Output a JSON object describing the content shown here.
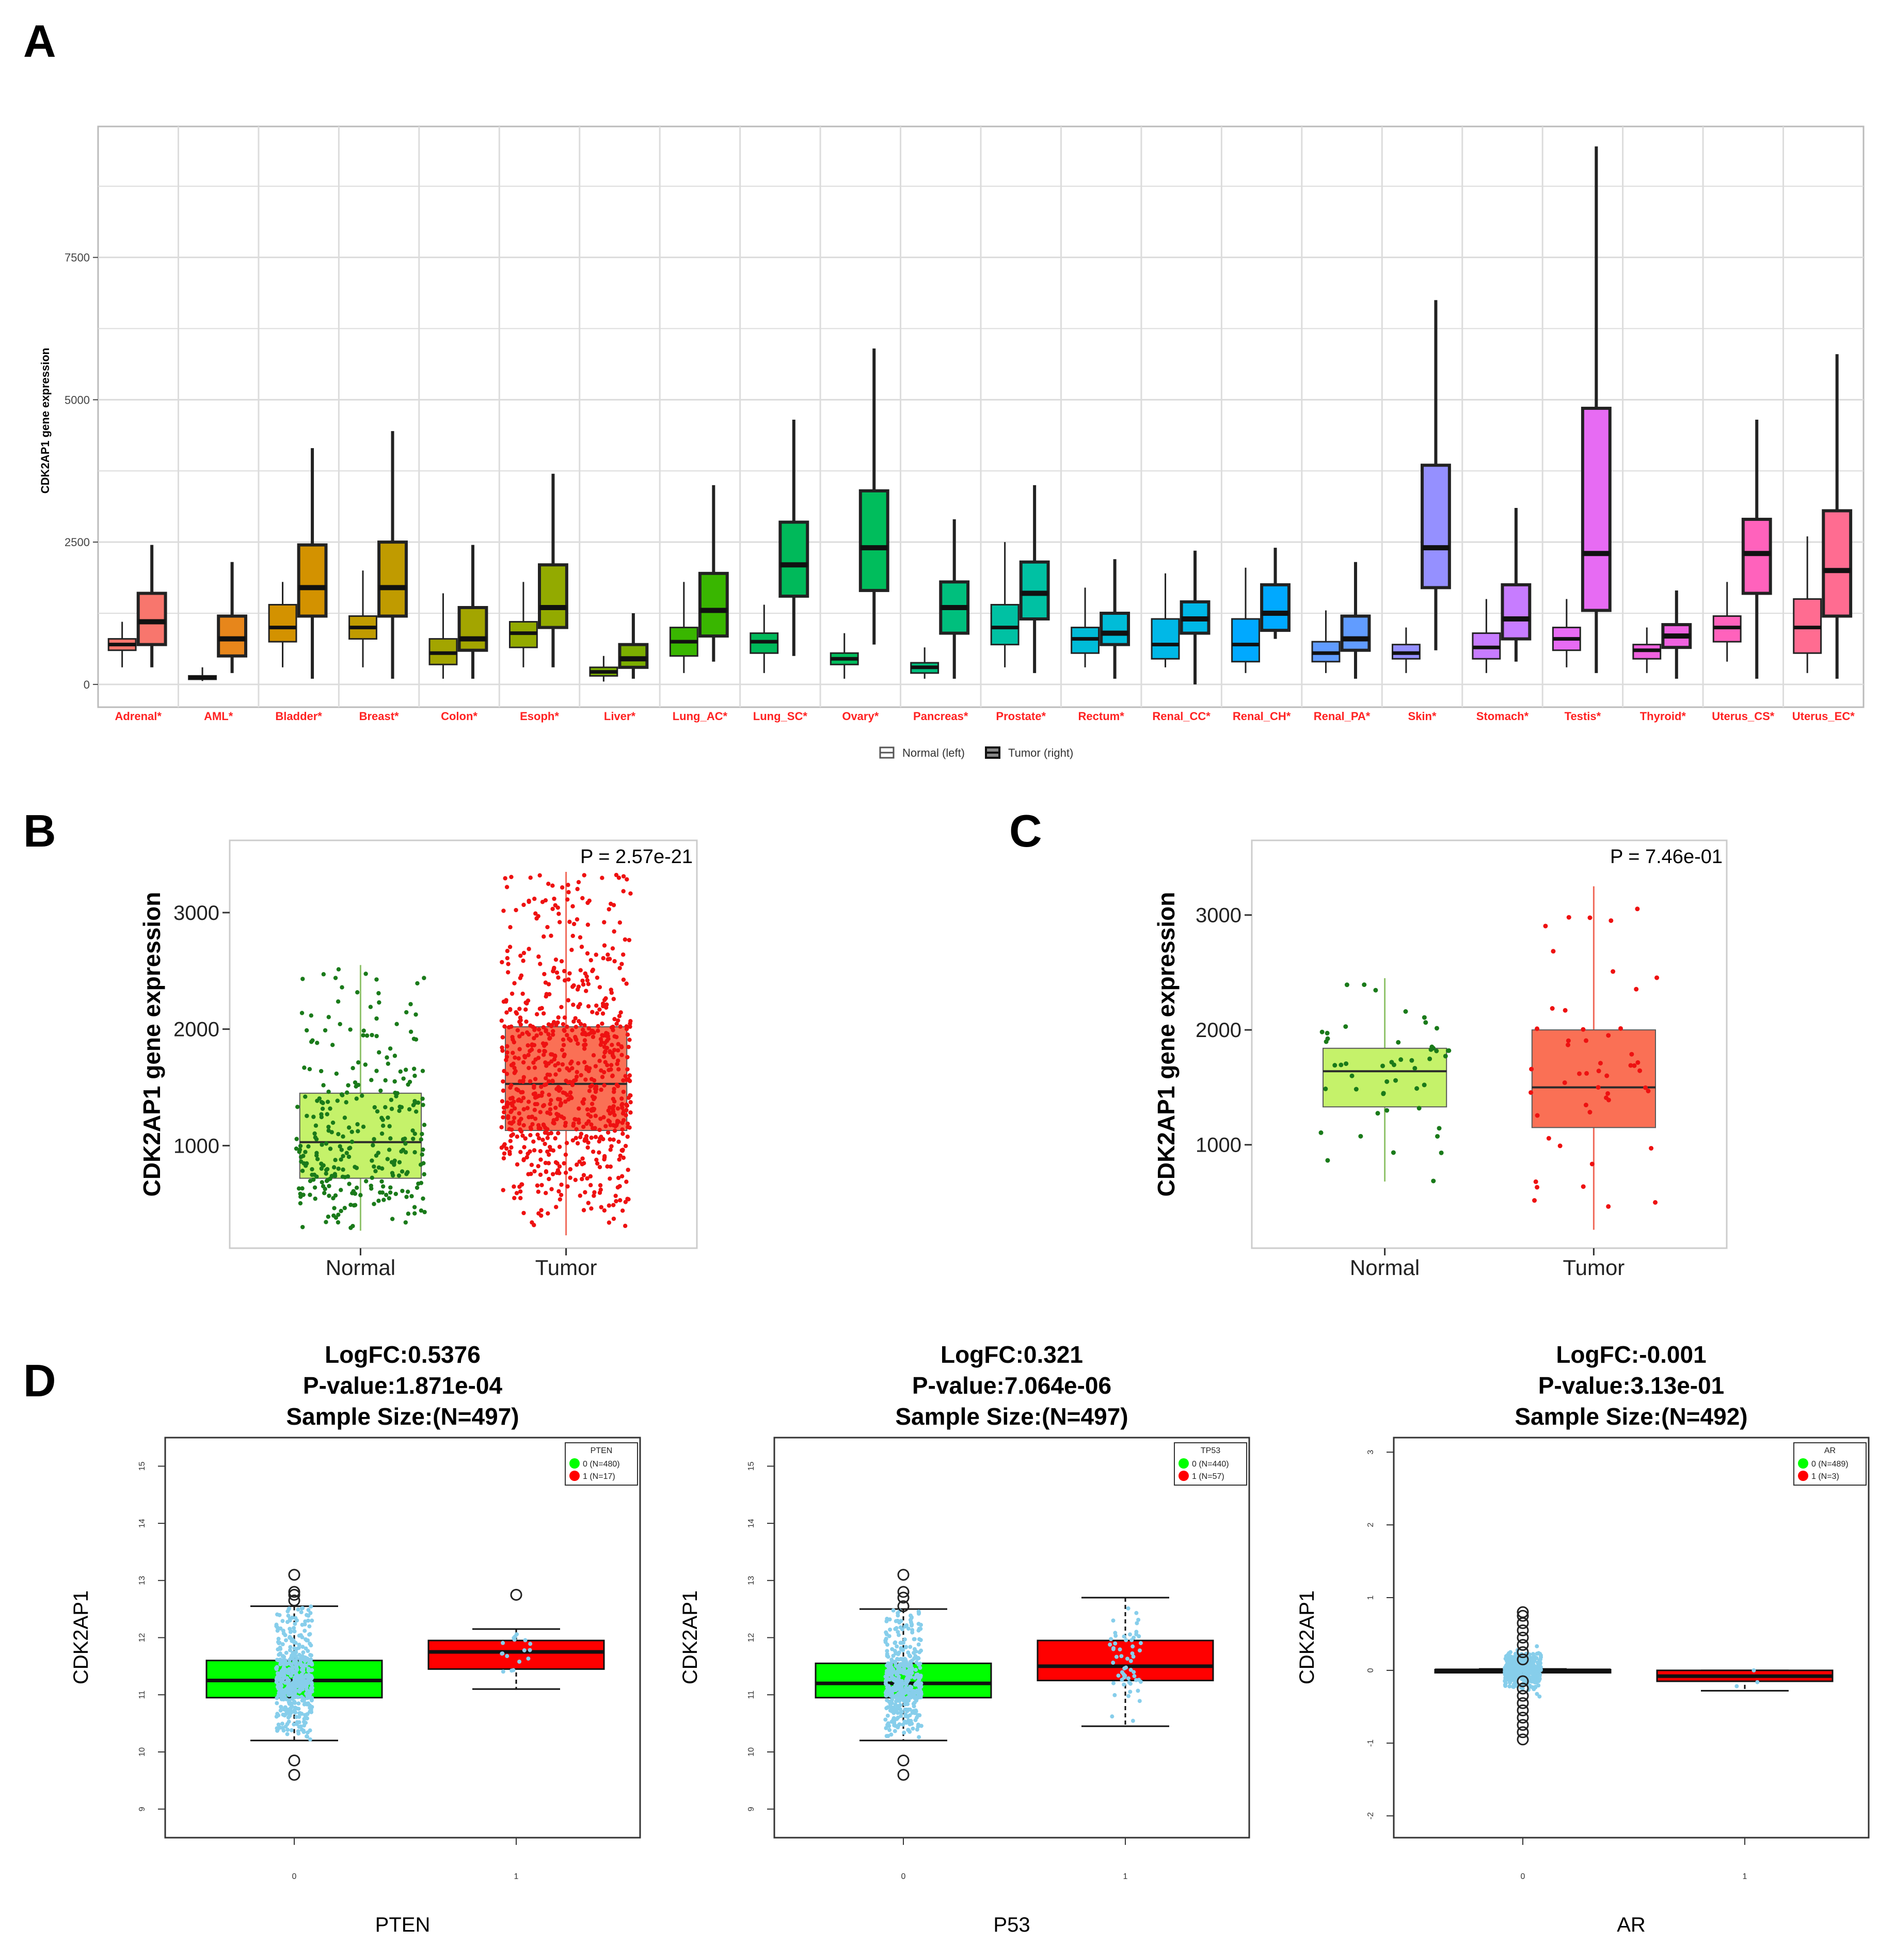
{
  "panel_labels": {
    "a": "A",
    "b": "B",
    "c": "C",
    "d": "D"
  },
  "colors": {
    "normal_green_fill": "#c5f26a",
    "normal_green_dot": "#1a7a1a",
    "tumor_red_fill": "#fa7055",
    "tumor_red_dot": "#ee1111",
    "d_green": "#00ff00",
    "d_red": "#ff0000",
    "d_dot": "#87ceeb",
    "tissue_label": "#ff2222",
    "grid": "#dcdcdc"
  },
  "chart_data": [
    {
      "id": "A",
      "type": "box",
      "ylabel": "CDK2AP1 gene expression",
      "ylim": [
        -400,
        9800
      ],
      "yticks": [
        0,
        2500,
        5000,
        7500
      ],
      "legend": {
        "normal": "Normal (left)",
        "tumor": "Tumor (right)"
      },
      "categories": [
        "Adrenal*",
        "AML*",
        "Bladder*",
        "Breast*",
        "Colon*",
        "Esoph*",
        "Liver*",
        "Lung_AC*",
        "Lung_SC*",
        "Ovary*",
        "Pancreas*",
        "Prostate*",
        "Rectum*",
        "Renal_CC*",
        "Renal_CH*",
        "Renal_PA*",
        "Skin*",
        "Stomach*",
        "Testis*",
        "Thyroid*",
        "Uterus_CS*",
        "Uterus_EC*"
      ],
      "colors": [
        "#f8766d",
        "#e7861b",
        "#d39200",
        "#c09b00",
        "#a3a500",
        "#93aa00",
        "#7cae00",
        "#39b600",
        "#00b95a",
        "#00bd5c",
        "#00bf7d",
        "#00c1a3",
        "#00bcd8",
        "#00b8e7",
        "#00a9ff",
        "#619cff",
        "#9590ff",
        "#c77cff",
        "#e76bf3",
        "#f062e0",
        "#ff62bc",
        "#ff6c91"
      ],
      "normal": [
        [
          300,
          600,
          700,
          800,
          1100
        ],
        [
          60,
          90,
          120,
          150,
          300
        ],
        [
          300,
          750,
          1000,
          1400,
          1800
        ],
        [
          300,
          800,
          1000,
          1200,
          2000
        ],
        [
          100,
          350,
          550,
          800,
          1600
        ],
        [
          300,
          650,
          900,
          1100,
          1800
        ],
        [
          50,
          150,
          220,
          300,
          500
        ],
        [
          200,
          500,
          750,
          1000,
          1800
        ],
        [
          200,
          550,
          750,
          900,
          1400
        ],
        [
          100,
          350,
          450,
          550,
          900
        ],
        [
          100,
          200,
          300,
          380,
          650
        ],
        [
          300,
          700,
          1000,
          1400,
          2500
        ],
        [
          300,
          550,
          800,
          1000,
          1700
        ],
        [
          300,
          450,
          700,
          1150,
          1950
        ],
        [
          200,
          400,
          700,
          1150,
          2050
        ],
        [
          200,
          400,
          550,
          750,
          1300
        ],
        [
          200,
          450,
          550,
          700,
          1000
        ],
        [
          200,
          450,
          650,
          900,
          1500
        ],
        [
          300,
          600,
          800,
          1000,
          1500
        ],
        [
          200,
          450,
          600,
          700,
          1000
        ],
        [
          400,
          750,
          1000,
          1200,
          1800
        ],
        [
          200,
          550,
          1000,
          1500,
          2600
        ]
      ],
      "tumor": [
        [
          300,
          700,
          1100,
          1600,
          2450
        ],
        [
          200,
          500,
          800,
          1200,
          2150
        ],
        [
          100,
          1200,
          1700,
          2450,
          4150
        ],
        [
          100,
          1200,
          1700,
          2500,
          4450
        ],
        [
          100,
          600,
          800,
          1350,
          2450
        ],
        [
          300,
          1000,
          1350,
          2100,
          3700
        ],
        [
          100,
          300,
          450,
          700,
          1250
        ],
        [
          400,
          850,
          1300,
          1950,
          3500
        ],
        [
          500,
          1550,
          2100,
          2850,
          4650
        ],
        [
          700,
          1650,
          2400,
          3400,
          5900
        ],
        [
          100,
          900,
          1350,
          1800,
          2900
        ],
        [
          200,
          1150,
          1600,
          2150,
          3500
        ],
        [
          100,
          700,
          900,
          1250,
          2200
        ],
        [
          0,
          900,
          1150,
          1450,
          2350
        ],
        [
          800,
          950,
          1250,
          1750,
          2400
        ],
        [
          100,
          600,
          800,
          1200,
          2150
        ],
        [
          600,
          1700,
          2400,
          3850,
          6750
        ],
        [
          400,
          800,
          1150,
          1750,
          3100
        ],
        [
          200,
          1300,
          2300,
          4850,
          9450
        ],
        [
          100,
          650,
          850,
          1050,
          1650
        ],
        [
          100,
          1600,
          2300,
          2900,
          4650
        ],
        [
          100,
          1200,
          2000,
          3050,
          5800
        ]
      ]
    },
    {
      "id": "B",
      "type": "box",
      "ylabel": "CDK2AP1 gene expression",
      "ylim": [
        120,
        3620
      ],
      "yticks": [
        1000,
        2000,
        3000
      ],
      "categories": [
        "Normal",
        "Tumor"
      ],
      "pvalue": "P = 2.57e-21",
      "boxes": [
        [
          270,
          720,
          1030,
          1450,
          2550
        ],
        [
          230,
          1130,
          1530,
          2020,
          3350
        ]
      ],
      "n_points": [
        300,
        800
      ]
    },
    {
      "id": "C",
      "type": "box",
      "ylabel": "CDK2AP1 gene expression",
      "ylim": [
        100,
        3650
      ],
      "yticks": [
        1000,
        2000,
        3000
      ],
      "categories": [
        "Normal",
        "Tumor"
      ],
      "pvalue": "P = 7.46e-01",
      "boxes": [
        [
          680,
          1330,
          1640,
          1840,
          2450
        ],
        [
          260,
          1150,
          1500,
          2000,
          3250
        ]
      ],
      "n_points": [
        50,
        50
      ]
    },
    {
      "id": "D1",
      "type": "box",
      "title": [
        "LogFC:0.5376",
        "P-value:1.871e-04",
        "Sample Size:(N=497)"
      ],
      "ylabel": "CDK2AP1",
      "xlabel": "PTEN",
      "ylim": [
        8.5,
        15.5
      ],
      "yticks": [
        9,
        10,
        11,
        12,
        13,
        14,
        15
      ],
      "categories": [
        "0",
        "1"
      ],
      "legend": {
        "title": "PTEN",
        "items": [
          "0 (N=480)",
          "1 (N=17)"
        ]
      },
      "boxes": [
        [
          10.2,
          10.95,
          11.25,
          11.6,
          12.55
        ],
        [
          11.1,
          11.45,
          11.75,
          11.95,
          12.15
        ]
      ],
      "outliers": [
        [
          9.6,
          9.85,
          12.65,
          12.75,
          12.8,
          13.1
        ],
        [
          12.75
        ]
      ],
      "n_points": [
        480,
        17
      ]
    },
    {
      "id": "D2",
      "type": "box",
      "title": [
        "LogFC:0.321",
        "P-value:7.064e-06",
        "Sample Size:(N=497)"
      ],
      "ylabel": "CDK2AP1",
      "xlabel": "P53",
      "ylim": [
        8.5,
        15.5
      ],
      "yticks": [
        9,
        10,
        11,
        12,
        13,
        14,
        15
      ],
      "categories": [
        "0",
        "1"
      ],
      "legend": {
        "title": "TP53",
        "items": [
          "0 (N=440)",
          "1 (N=57)"
        ]
      },
      "boxes": [
        [
          10.2,
          10.95,
          11.2,
          11.55,
          12.5
        ],
        [
          10.45,
          11.25,
          11.5,
          11.95,
          12.7
        ]
      ],
      "outliers": [
        [
          9.6,
          9.85,
          12.55,
          12.7,
          12.8,
          13.1
        ],
        []
      ],
      "n_points": [
        440,
        57
      ]
    },
    {
      "id": "D3",
      "type": "box",
      "title": [
        "LogFC:-0.001",
        "P-value:3.13e-01",
        "Sample Size:(N=492)"
      ],
      "ylabel": "CDK2AP1",
      "xlabel": "AR",
      "ylim": [
        -2.3,
        3.2
      ],
      "yticks": [
        -2,
        -1,
        0,
        1,
        2,
        3
      ],
      "categories": [
        "0",
        "1"
      ],
      "legend": {
        "title": "AR",
        "items": [
          "0 (N=489)",
          "1 (N=3)"
        ]
      },
      "boxes": [
        [
          -0.02,
          -0.01,
          0,
          0.01,
          0.02
        ],
        [
          -0.28,
          -0.15,
          -0.08,
          0.0,
          0.0
        ]
      ],
      "outliers": [
        [
          -0.95,
          -0.85,
          -0.75,
          -0.65,
          -0.55,
          -0.45,
          -0.35,
          -0.25,
          -0.15,
          0.15,
          0.25,
          0.35,
          0.45,
          0.55,
          0.65,
          0.75,
          0.8
        ],
        []
      ],
      "n_points": [
        489,
        3
      ]
    }
  ]
}
